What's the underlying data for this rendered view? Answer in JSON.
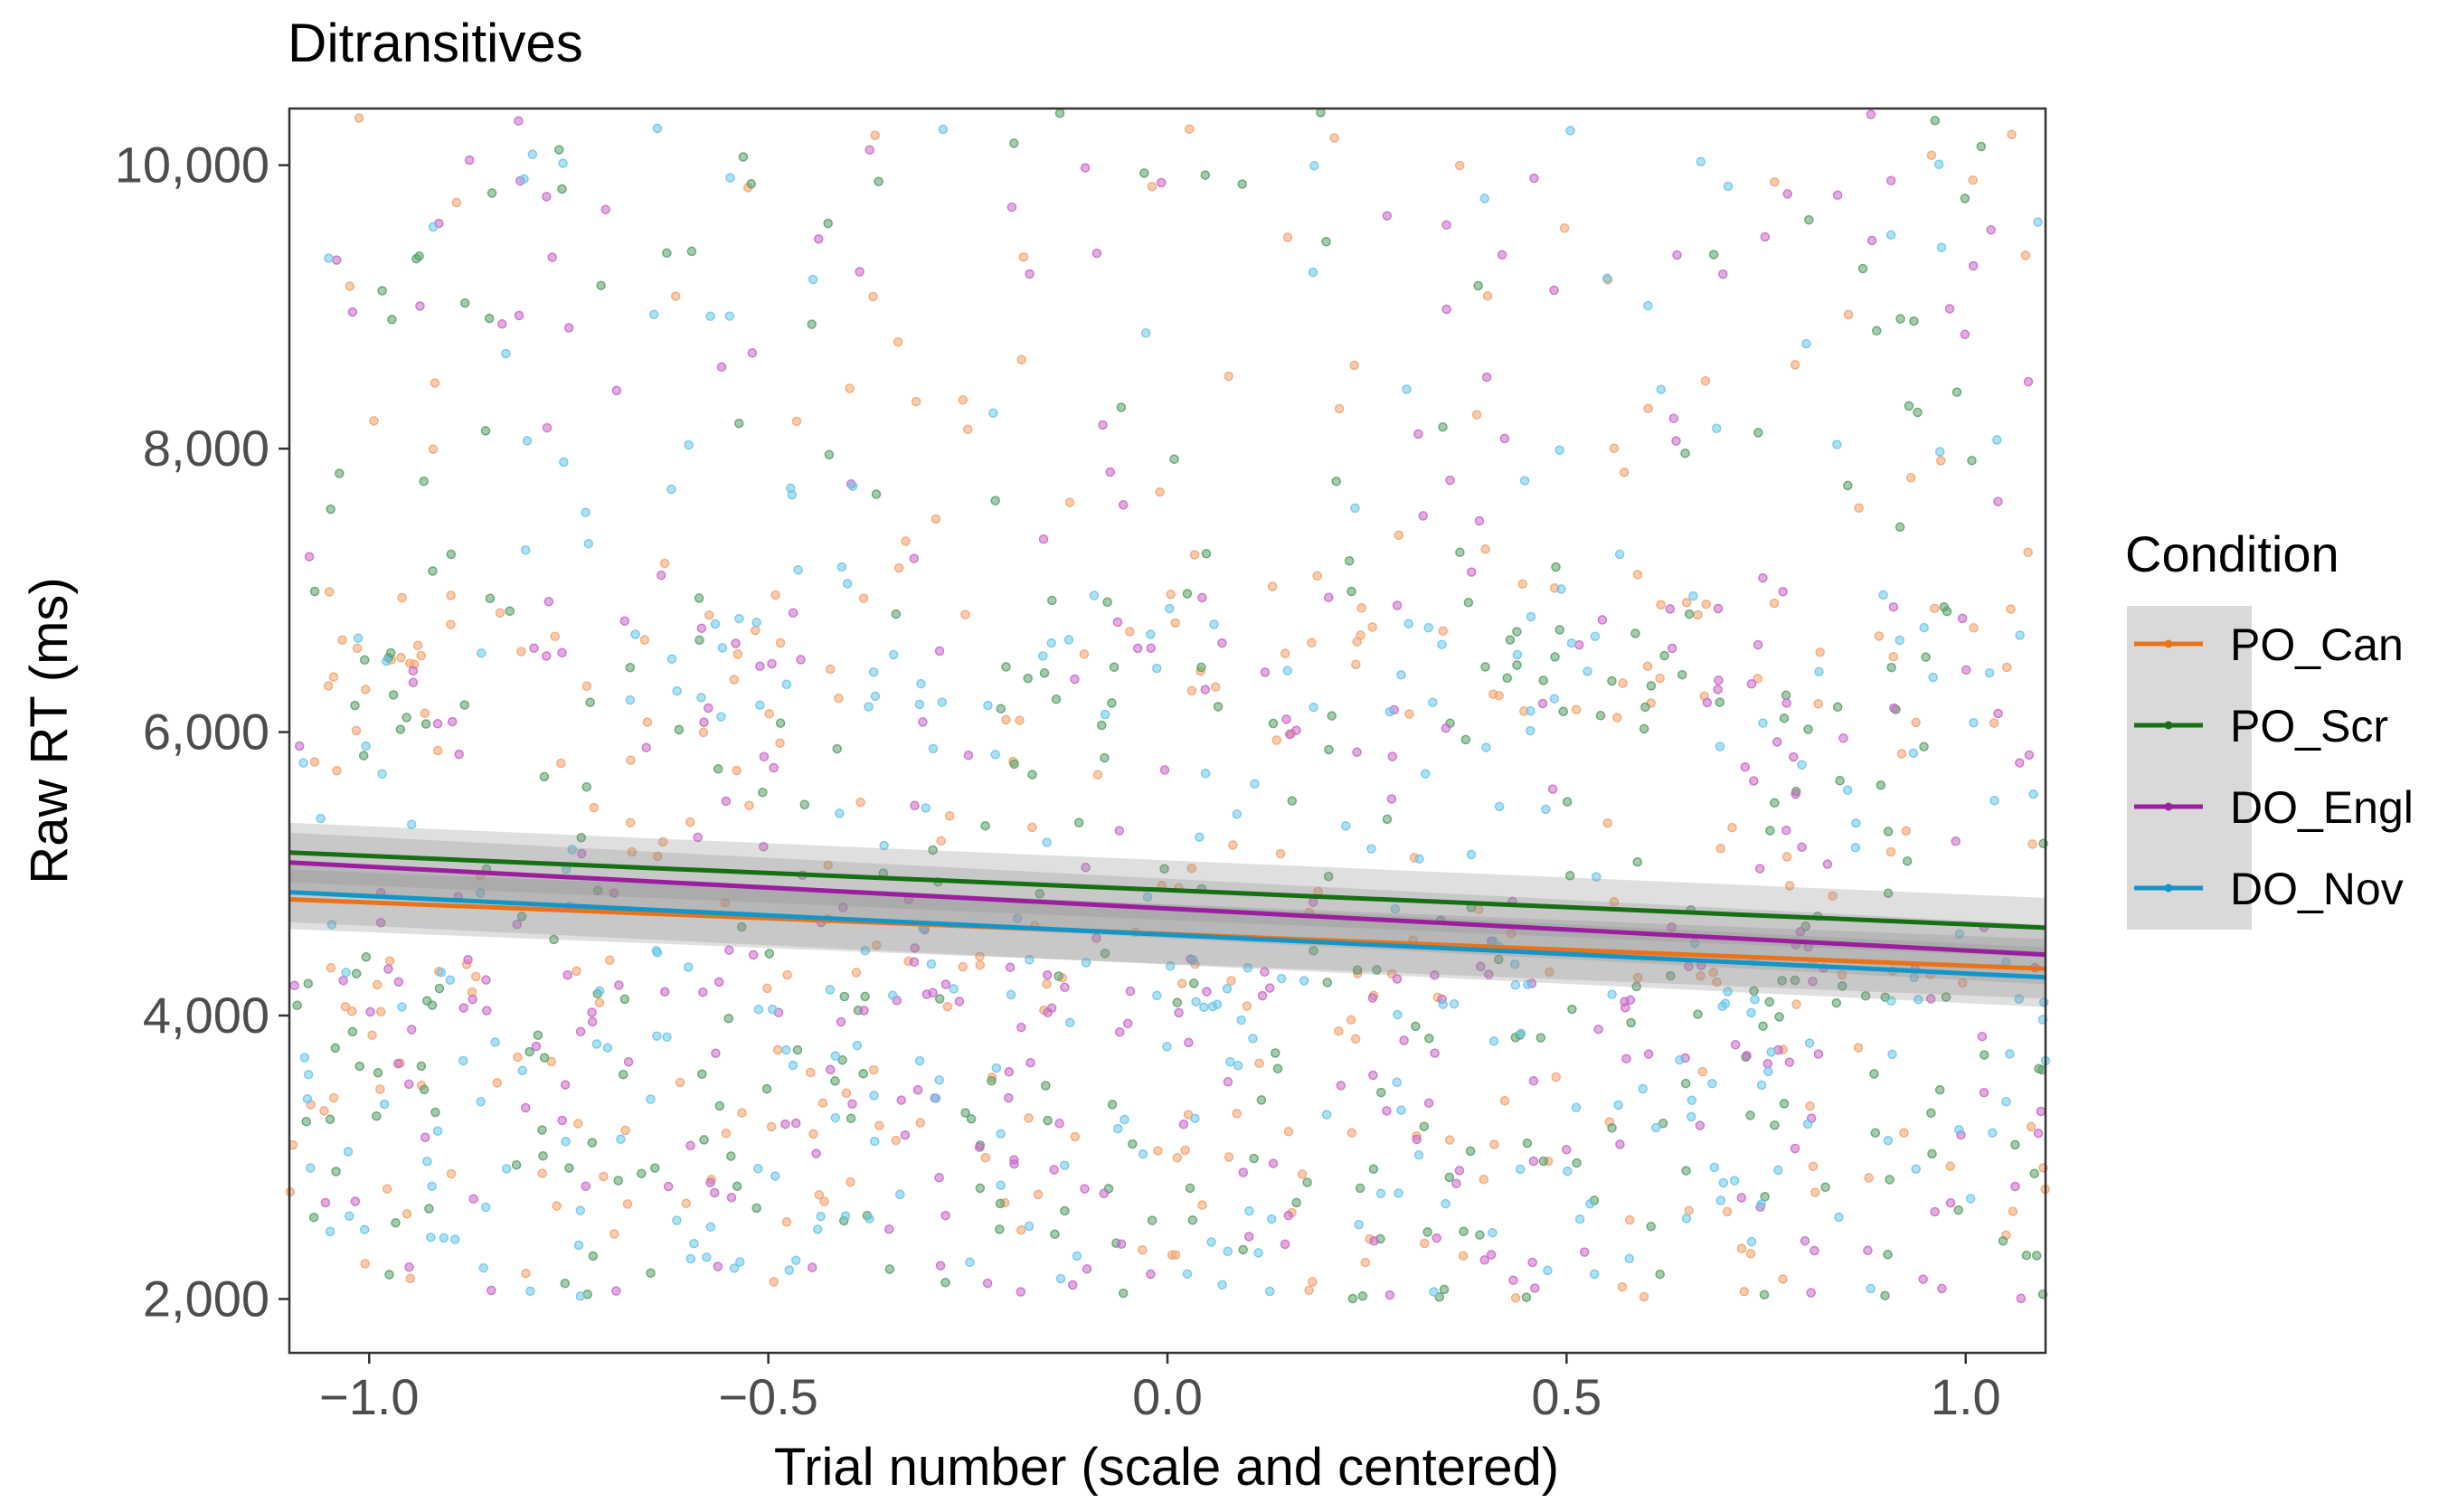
{
  "chart_data": {
    "type": "scatter",
    "title": "Ditransitives",
    "xlabel": "Trial number (scale and centered)",
    "ylabel": "Raw RT (ms)",
    "xlim": [
      -1.1,
      1.1
    ],
    "ylim": [
      1620,
      10400
    ],
    "xticks": [
      -1.0,
      -0.5,
      0.0,
      0.5,
      1.0
    ],
    "xtick_labels": [
      "−1.0",
      "−0.5",
      "0.0",
      "0.5",
      "1.0"
    ],
    "yticks": [
      2000,
      4000,
      6000,
      8000,
      10000
    ],
    "ytick_labels": [
      "2,000",
      "4,000",
      "6,000",
      "8,000",
      "10,000"
    ],
    "grid": false,
    "legend": {
      "title": "Condition",
      "position": "right"
    },
    "series": [
      {
        "name": "PO_Can",
        "color": "#e8731a",
        "point_color": "#f4a36e",
        "fit": {
          "x": [
            -1.1,
            1.1
          ],
          "y": [
            4820,
            4330
          ]
        },
        "ci_halfwidth": 210,
        "points_seed": 11,
        "points_count": 340
      },
      {
        "name": "PO_Scr",
        "color": "#166f13",
        "point_color": "#5aa06a",
        "fit": {
          "x": [
            -1.1,
            1.1
          ],
          "y": [
            5150,
            4620
          ]
        },
        "ci_halfwidth": 210,
        "points_seed": 23,
        "points_count": 340
      },
      {
        "name": "DO_Engl",
        "color": "#9a1e9e",
        "point_color": "#c86ac9",
        "fit": {
          "x": [
            -1.1,
            1.1
          ],
          "y": [
            5080,
            4430
          ]
        },
        "ci_halfwidth": 210,
        "points_seed": 37,
        "points_count": 340
      },
      {
        "name": "DO_Nov",
        "color": "#1495c8",
        "point_color": "#6cc6ea",
        "fit": {
          "x": [
            -1.1,
            1.1
          ],
          "y": [
            4870,
            4270
          ]
        },
        "ci_halfwidth": 210,
        "points_seed": 53,
        "points_count": 340
      }
    ]
  }
}
